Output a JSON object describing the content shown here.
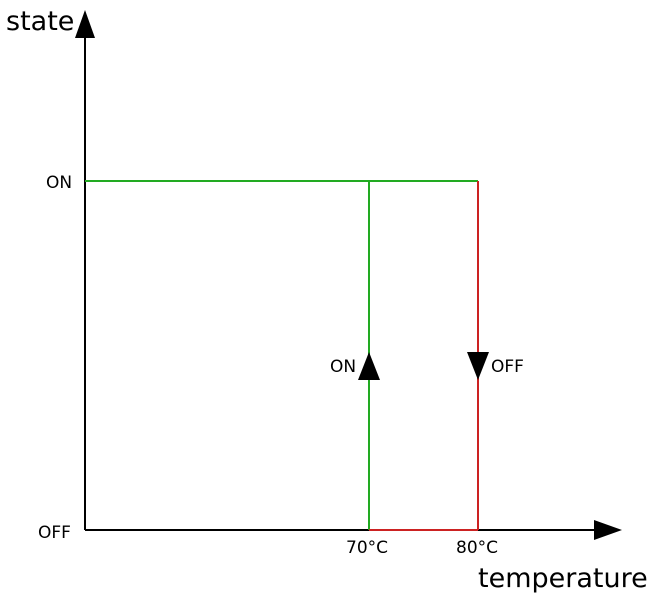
{
  "axes": {
    "y_title": "state",
    "x_title": "temperature",
    "y_ticks": [
      "ON",
      "OFF"
    ],
    "x_ticks": [
      "70°C",
      "80°C"
    ]
  },
  "arrows": {
    "rise_label": "ON",
    "fall_label": "OFF"
  },
  "colors": {
    "on_branch": "#22aa22",
    "off_branch": "#cc2222",
    "axis": "#000000"
  }
}
